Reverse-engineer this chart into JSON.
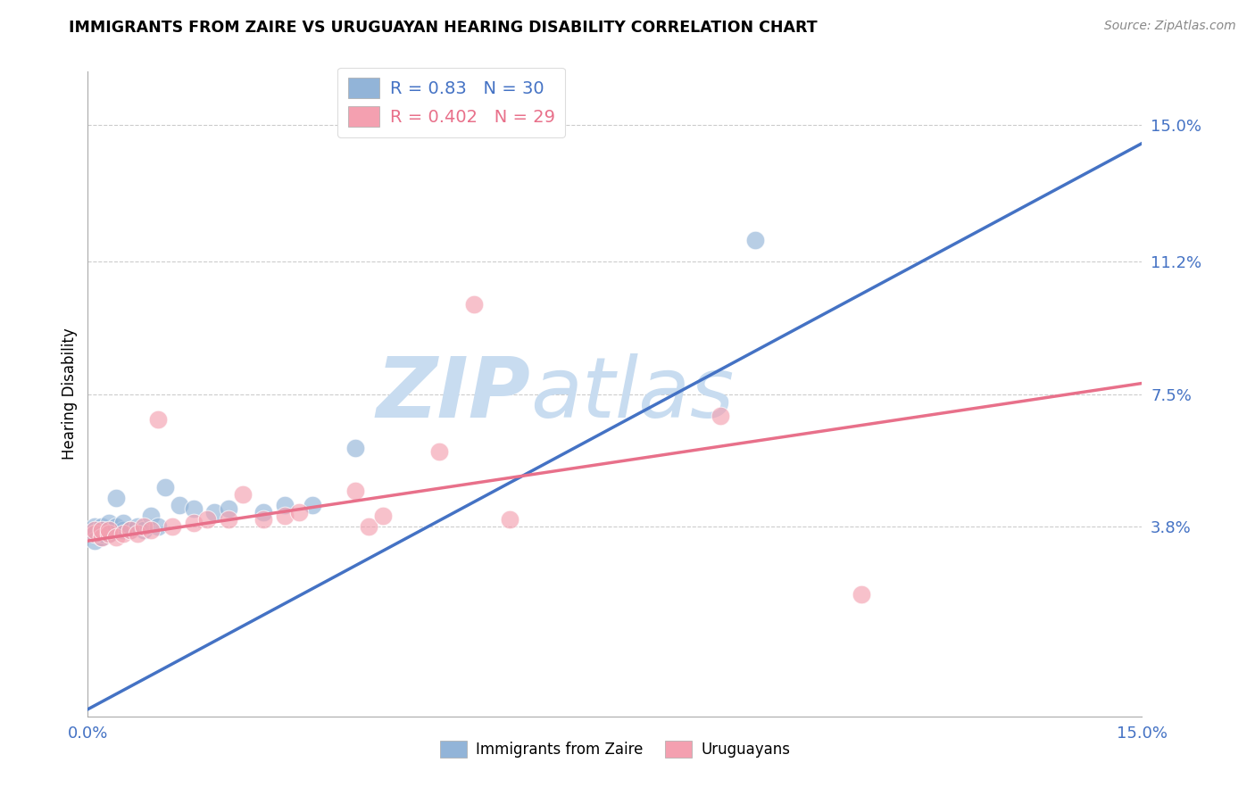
{
  "title": "IMMIGRANTS FROM ZAIRE VS URUGUAYAN HEARING DISABILITY CORRELATION CHART",
  "source": "Source: ZipAtlas.com",
  "ylabel": "Hearing Disability",
  "xlim": [
    0.0,
    0.15
  ],
  "ylim": [
    -0.015,
    0.165
  ],
  "yticks": [
    0.038,
    0.075,
    0.112,
    0.15
  ],
  "yticklabels": [
    "3.8%",
    "7.5%",
    "11.2%",
    "15.0%"
  ],
  "blue_R": 0.83,
  "blue_N": 30,
  "pink_R": 0.402,
  "pink_N": 29,
  "blue_color": "#92B4D8",
  "pink_color": "#F4A0B0",
  "blue_line_color": "#4472C4",
  "pink_line_color": "#E8708A",
  "watermark_zip": "ZIP",
  "watermark_atlas": "atlas",
  "background_color": "#FFFFFF",
  "blue_line_x0": 0.0,
  "blue_line_y0": -0.013,
  "blue_line_x1": 0.15,
  "blue_line_y1": 0.145,
  "pink_line_x0": 0.0,
  "pink_line_y0": 0.034,
  "pink_line_x1": 0.15,
  "pink_line_y1": 0.078,
  "blue_x": [
    0.001,
    0.001,
    0.001,
    0.001,
    0.002,
    0.002,
    0.002,
    0.002,
    0.003,
    0.003,
    0.003,
    0.004,
    0.004,
    0.005,
    0.005,
    0.006,
    0.007,
    0.008,
    0.009,
    0.01,
    0.011,
    0.013,
    0.015,
    0.018,
    0.02,
    0.025,
    0.028,
    0.032,
    0.038,
    0.095
  ],
  "blue_y": [
    0.037,
    0.038,
    0.036,
    0.034,
    0.037,
    0.035,
    0.038,
    0.036,
    0.037,
    0.039,
    0.036,
    0.038,
    0.046,
    0.037,
    0.039,
    0.037,
    0.038,
    0.037,
    0.041,
    0.038,
    0.049,
    0.044,
    0.043,
    0.042,
    0.043,
    0.042,
    0.044,
    0.044,
    0.06,
    0.118
  ],
  "pink_x": [
    0.001,
    0.001,
    0.002,
    0.002,
    0.003,
    0.003,
    0.004,
    0.005,
    0.006,
    0.007,
    0.008,
    0.009,
    0.01,
    0.012,
    0.015,
    0.017,
    0.02,
    0.022,
    0.025,
    0.028,
    0.03,
    0.038,
    0.04,
    0.042,
    0.05,
    0.055,
    0.06,
    0.09,
    0.11
  ],
  "pink_y": [
    0.036,
    0.037,
    0.035,
    0.037,
    0.036,
    0.037,
    0.035,
    0.036,
    0.037,
    0.036,
    0.038,
    0.037,
    0.068,
    0.038,
    0.039,
    0.04,
    0.04,
    0.047,
    0.04,
    0.041,
    0.042,
    0.048,
    0.038,
    0.041,
    0.059,
    0.1,
    0.04,
    0.069,
    0.019
  ]
}
